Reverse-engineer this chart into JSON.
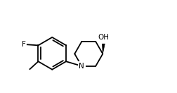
{
  "bg_color": "#ffffff",
  "line_color": "#000000",
  "text_color": "#000000",
  "bond_lw": 1.3,
  "font_size": 7.5,
  "figsize": [
    2.53,
    1.32
  ],
  "dpi": 100,
  "xlim": [
    0.0,
    10.5
  ],
  "ylim": [
    0.5,
    6.5
  ]
}
